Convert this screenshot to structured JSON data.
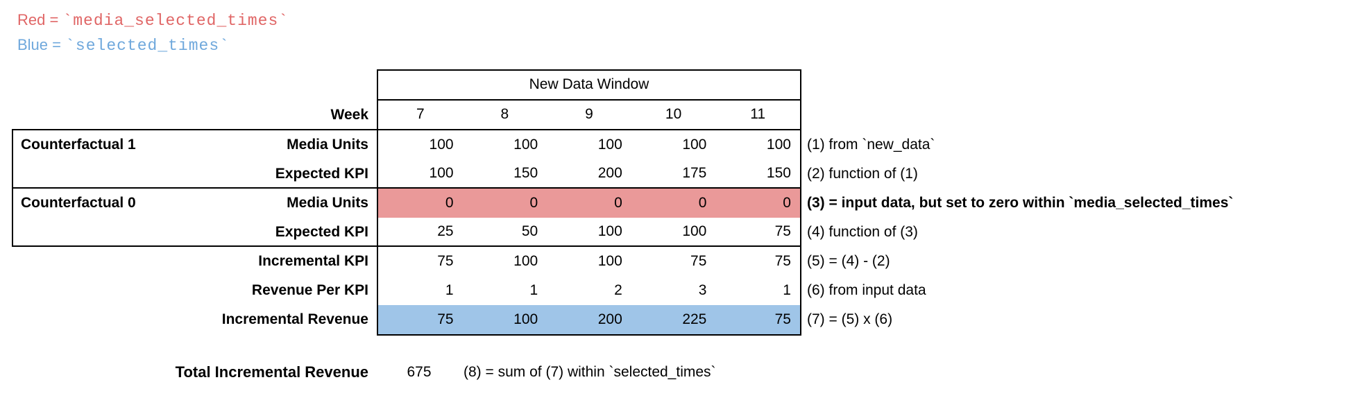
{
  "colors": {
    "red_fill": "#ea9999",
    "blue_fill": "#9fc5e8",
    "red_text": "#e06666",
    "blue_text": "#6fa8dc",
    "border": "#000000",
    "background": "#ffffff"
  },
  "legend": {
    "red": {
      "prefix": "Red = ",
      "code": "`media_selected_times`"
    },
    "blue": {
      "prefix": "Blue = ",
      "code": "`selected_times`"
    }
  },
  "table": {
    "header": "New Data Window",
    "week_label": "Week",
    "weeks": [
      "7",
      "8",
      "9",
      "10",
      "11"
    ],
    "groups": {
      "cf1": "Counterfactual 1",
      "cf0": "Counterfactual 0"
    },
    "rows": [
      {
        "label": "Media Units",
        "values": [
          "100",
          "100",
          "100",
          "100",
          "100"
        ],
        "note": "(1) from `new_data`",
        "highlight": "none"
      },
      {
        "label": "Expected KPI",
        "values": [
          "100",
          "150",
          "200",
          "175",
          "150"
        ],
        "note": "(2) function of (1)",
        "highlight": "none"
      },
      {
        "label": "Media Units",
        "values": [
          "0",
          "0",
          "0",
          "0",
          "0"
        ],
        "note": "(3) = input data, but set to zero within `media_selected_times`",
        "highlight": "red"
      },
      {
        "label": "Expected KPI",
        "values": [
          "25",
          "50",
          "100",
          "100",
          "75"
        ],
        "note": "(4) function of (3)",
        "highlight": "none"
      },
      {
        "label": "Incremental KPI",
        "values": [
          "75",
          "100",
          "100",
          "75",
          "75"
        ],
        "note": "(5) = (4) - (2)",
        "highlight": "none"
      },
      {
        "label": "Revenue Per KPI",
        "values": [
          "1",
          "1",
          "2",
          "3",
          "1"
        ],
        "note": "(6) from input data",
        "highlight": "none"
      },
      {
        "label": "Incremental Revenue",
        "values": [
          "75",
          "100",
          "200",
          "225",
          "75"
        ],
        "note": "(7) = (5) x (6)",
        "highlight": "blue"
      }
    ]
  },
  "total": {
    "label": "Total Incremental Revenue",
    "value": "675",
    "note": "(8) = sum of (7) within `selected_times`"
  }
}
